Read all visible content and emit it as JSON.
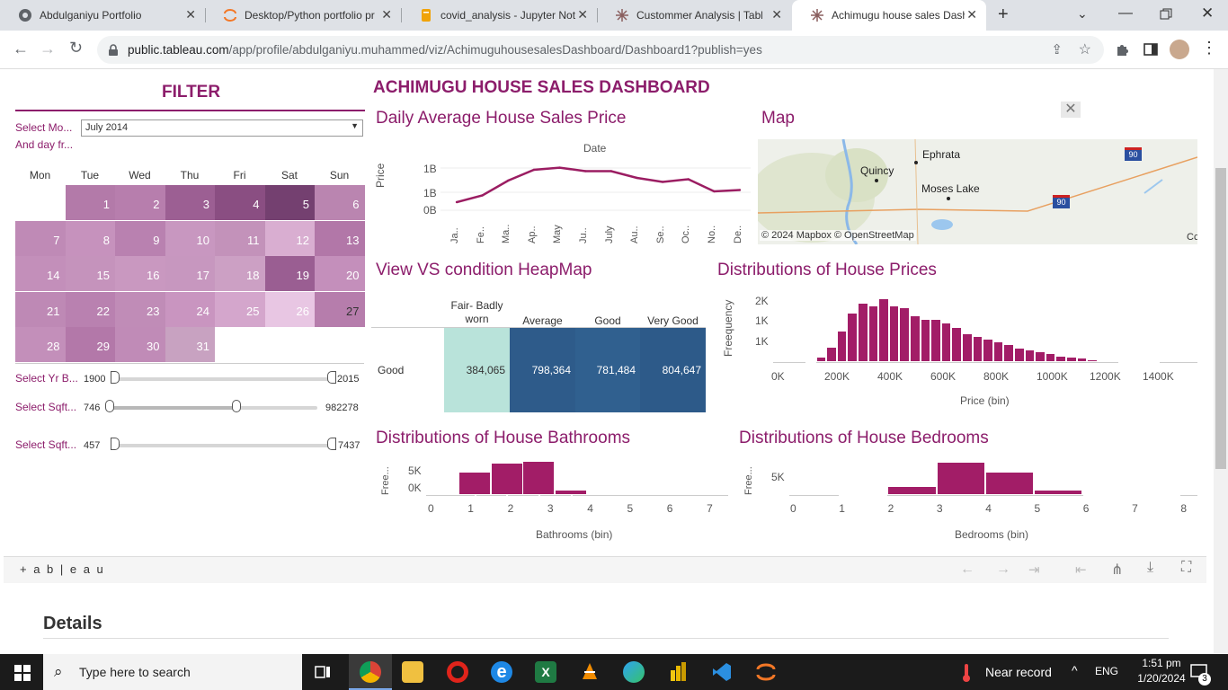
{
  "tabs": [
    {
      "title": "Abdulganiyu Portfolio",
      "active": false
    },
    {
      "title": "Desktop/Python portfolio pr",
      "active": false
    },
    {
      "title": "covid_analysis - Jupyter Not",
      "active": false
    },
    {
      "title": "Custommer Analysis | Tablea",
      "active": false
    },
    {
      "title": "Achimugu house sales Dash",
      "active": true
    }
  ],
  "address": {
    "host": "public.tableau.com",
    "path": "/app/profile/abdulganiyu.muhammed/viz/AchimuguhousesalesDashboard/Dashboard1?publish=yes"
  },
  "filter": {
    "title": "FILTER",
    "month_label": "Select Mo...",
    "month_value": "July 2014",
    "day_label": "And day fr...",
    "weekdays": [
      "Mon",
      "Tue",
      "Wed",
      "Thu",
      "Fri",
      "Sat",
      "Sun"
    ],
    "days": [
      "1",
      "2",
      "3",
      "4",
      "5",
      "6",
      "7",
      "8",
      "9",
      "10",
      "11",
      "12",
      "13",
      "14",
      "15",
      "16",
      "17",
      "18",
      "19",
      "20",
      "21",
      "22",
      "23",
      "24",
      "25",
      "26",
      "27",
      "28",
      "29",
      "30",
      "31"
    ],
    "yr_label": "Select Yr B...",
    "yr_min": "1900",
    "yr_max": "2015",
    "sqft1_label": "Select Sqft...",
    "sqft1_min": "746",
    "sqft1_max": "982278",
    "sqft2_label": "Select Sqft...",
    "sqft2_min": "457",
    "sqft2_max": "7437"
  },
  "dashboard_title": "ACHIMUGU HOUSE SALES DASHBOARD",
  "line_chart": {
    "title": "Daily Average House Sales Price",
    "xlabel": "Date",
    "ylabel": "Price",
    "yticks": [
      "1B",
      "1B",
      "0B"
    ],
    "xticks": [
      "Ja..",
      "Fe..",
      "Ma..",
      "Ap..",
      "May",
      "Ju..",
      "July",
      "Au..",
      "Se..",
      "Oc..",
      "No..",
      "De.."
    ]
  },
  "map": {
    "title": "Map",
    "places": [
      "Ephrata",
      "Quincy",
      "Moses Lake"
    ],
    "route1": "90",
    "route2": "90",
    "credit": "© 2024 Mapbox  © OpenStreetMap",
    "corner": "Cc"
  },
  "heatmap": {
    "title": "View VS condition HeapMap",
    "columns": [
      "Fair- Badly worn",
      "Average",
      "Good",
      "Very Good"
    ],
    "row_label": "Good",
    "values": [
      "384,065",
      "798,364",
      "781,484",
      "804,647"
    ]
  },
  "price_hist": {
    "title": "Distributions of House Prices",
    "ylabel": "Freequency",
    "yticks": [
      "2K",
      "1K",
      "1K"
    ],
    "xticks": [
      "0K",
      "200K",
      "400K",
      "600K",
      "800K",
      "1000K",
      "1200K",
      "1400K"
    ],
    "xlabel": "Price (bin)"
  },
  "bath_hist": {
    "title": "Distributions of House Bathrooms",
    "ylabel": "Free...",
    "yticks": [
      "5K",
      "0K"
    ],
    "xticks": [
      "0",
      "1",
      "2",
      "3",
      "4",
      "5",
      "6",
      "7"
    ],
    "xlabel": "Bathrooms (bin)"
  },
  "bed_hist": {
    "title": "Distributions of House Bedrooms",
    "ylabel": "Free...",
    "yticks": [
      "5K"
    ],
    "xticks": [
      "0",
      "1",
      "2",
      "3",
      "4",
      "5",
      "6",
      "7",
      "8"
    ],
    "xlabel": "Bedrooms (bin)"
  },
  "tableau_logo": "+ a b | e a u",
  "details_heading": "Details",
  "taskbar": {
    "search_placeholder": "Type here to search",
    "weather": "Near record",
    "lang": "ENG",
    "time": "1:51 pm",
    "date": "1/20/2024",
    "notif_count": "3"
  },
  "chart_data": [
    {
      "type": "line",
      "title": "Daily Average House Sales Price",
      "xlabel": "Date",
      "ylabel": "Price",
      "x": [
        "Jan",
        "Feb",
        "Mar",
        "Apr",
        "May",
        "Jun",
        "July",
        "Aug",
        "Sep",
        "Oct",
        "Nov",
        "Dec"
      ],
      "series": [
        {
          "values": [
            520000,
            545000,
            600000,
            640000,
            648000,
            635000,
            635000,
            610000,
            595000,
            605000,
            560000,
            565000
          ]
        }
      ]
    },
    {
      "type": "heatmap",
      "title": "View VS condition HeapMap",
      "categories": [
        "Fair- Badly worn",
        "Average",
        "Good",
        "Very Good"
      ],
      "rows": [
        "Good"
      ],
      "values": [
        [
          384065,
          798364,
          781484,
          804647
        ]
      ]
    },
    {
      "type": "bar",
      "title": "Distributions of House Prices",
      "xlabel": "Price (bin)",
      "ylabel": "Freequency",
      "categories": [
        "100K",
        "140K",
        "180K",
        "220K",
        "260K",
        "300K",
        "340K",
        "380K",
        "420K",
        "460K",
        "500K",
        "540K",
        "580K",
        "620K",
        "660K",
        "700K",
        "740K",
        "780K",
        "820K",
        "860K",
        "900K",
        "940K",
        "980K",
        "1020K",
        "1060K",
        "1100K",
        "1140K",
        "1180K",
        "1220K",
        "1260K",
        "1300K",
        "1340K",
        "1380K",
        "1420K"
      ],
      "values": [
        40,
        160,
        480,
        1000,
        1540,
        1850,
        1780,
        1990,
        1790,
        1720,
        1480,
        1340,
        1340,
        1240,
        1110,
        900,
        830,
        720,
        640,
        560,
        460,
        400,
        330,
        280,
        200,
        170,
        130,
        90,
        70,
        50,
        40,
        30,
        20,
        15
      ]
    },
    {
      "type": "bar",
      "title": "Distributions of House Bathrooms",
      "xlabel": "Bathrooms (bin)",
      "categories": [
        "1",
        "1.5",
        "2",
        "2.5",
        "3",
        "3.5",
        "4",
        "4.5"
      ],
      "values": [
        3900,
        0,
        5400,
        0,
        5700,
        0,
        900,
        100
      ]
    },
    {
      "type": "bar",
      "title": "Distributions of House Bedrooms",
      "xlabel": "Bedrooms (bin)",
      "categories": [
        "1",
        "2",
        "3",
        "4",
        "5",
        "6",
        "7"
      ],
      "values": [
        200,
        2700,
        9800,
        6900,
        1600,
        250,
        40
      ]
    }
  ]
}
